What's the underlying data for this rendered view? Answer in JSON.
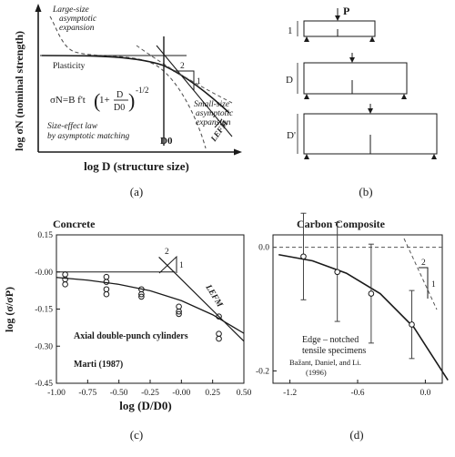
{
  "panel_a": {
    "panel_label": "(a)",
    "ylabel": "log σN (nominal strength)",
    "xlabel": "log D (structure size)",
    "large_size_label": [
      "Large-size",
      "asymptotic",
      "expansion"
    ],
    "plasticity_label": "Plasticity",
    "small_size_label": [
      "Small-size",
      "asymptotic",
      "expansion"
    ],
    "lefm_label": "LEFM",
    "slope_label": [
      "2",
      "1"
    ],
    "formula": {
      "lhs": "σN=B f't",
      "paren_one": "1+",
      "num": "D",
      "den": "D0",
      "exponent": "-1/2"
    },
    "law_label": [
      "Size-effect law",
      "by asymptotic matching"
    ],
    "d0_label": "D0"
  },
  "panel_b": {
    "panel_label": "(b)",
    "load_label": "P",
    "beam_labels": [
      "1",
      "D",
      "D'"
    ]
  },
  "panel_c": {
    "panel_label": "(c)",
    "title": "Concrete",
    "ylabel": "log (σ/σP)",
    "xlabel": "log (D/D0)",
    "annotation": "Axial double-punch cylinders",
    "citation": "Marti (1987)",
    "lefm_label": "LEFM",
    "slope_label": [
      "2",
      "1"
    ],
    "xticks": [
      "-1.00",
      "-0.75",
      "-0.50",
      "-0.25",
      "-0.00",
      "0.25",
      "0.50"
    ],
    "yticks": [
      "0.15",
      "-0.00",
      "-0.15",
      "-0.30",
      "-0.45"
    ]
  },
  "panel_d": {
    "panel_label": "(d)",
    "title": "Carbon Composite",
    "annotation": [
      "Edge – notched",
      "tensile specimens"
    ],
    "citation": [
      "Bažant, Daniel, and Li.",
      "(1996)"
    ],
    "slope_label": [
      "2",
      "1"
    ],
    "xticks": [
      "-1.2",
      "-0.6",
      "0.0"
    ],
    "yticks": [
      "0.0",
      "-0.2"
    ]
  },
  "chart_data": [
    {
      "type": "scatter",
      "panel": "(c)",
      "title": "Concrete",
      "xlabel": "log (D/D0)",
      "ylabel": "log (σ/σP)",
      "xlim": [
        -1.0,
        0.5
      ],
      "ylim": [
        -0.45,
        0.15
      ],
      "series": [
        {
          "x": [
            -0.93,
            -0.93,
            -0.93,
            -0.6,
            -0.6,
            -0.6,
            -0.6,
            -0.32,
            -0.32,
            -0.32,
            -0.02,
            -0.02,
            -0.02,
            0.3,
            0.3,
            0.3
          ],
          "y": [
            -0.01,
            -0.03,
            -0.05,
            -0.02,
            -0.04,
            -0.07,
            -0.09,
            -0.07,
            -0.09,
            -0.1,
            -0.14,
            -0.16,
            -0.17,
            -0.18,
            -0.25,
            -0.27
          ]
        }
      ],
      "fit_curve": {
        "x": [
          -1.0,
          -0.75,
          -0.5,
          -0.25,
          0.0,
          0.25,
          0.5
        ],
        "y": [
          -0.022,
          -0.033,
          -0.05,
          -0.076,
          -0.116,
          -0.173,
          -0.248
        ]
      },
      "lefm_line": {
        "x": [
          0.2,
          0.5
        ],
        "y": [
          -0.13,
          -0.28
        ]
      }
    },
    {
      "type": "scatter",
      "panel": "(d)",
      "title": "Carbon Composite",
      "xlim": [
        -1.35,
        0.15
      ],
      "ylim": [
        -0.22,
        0.02
      ],
      "series": [
        {
          "x": [
            -1.08,
            -0.78,
            -0.48,
            -0.12
          ],
          "y": [
            -0.015,
            -0.04,
            -0.075,
            -0.125
          ],
          "error": [
            0.07,
            0.08,
            0.08,
            0.055
          ]
        }
      ],
      "fit_curve": {
        "x": [
          -1.3,
          -1.0,
          -0.7,
          -0.4,
          -0.1,
          0.2
        ],
        "y": [
          -0.012,
          -0.022,
          -0.042,
          -0.075,
          -0.13,
          -0.215
        ]
      }
    }
  ]
}
